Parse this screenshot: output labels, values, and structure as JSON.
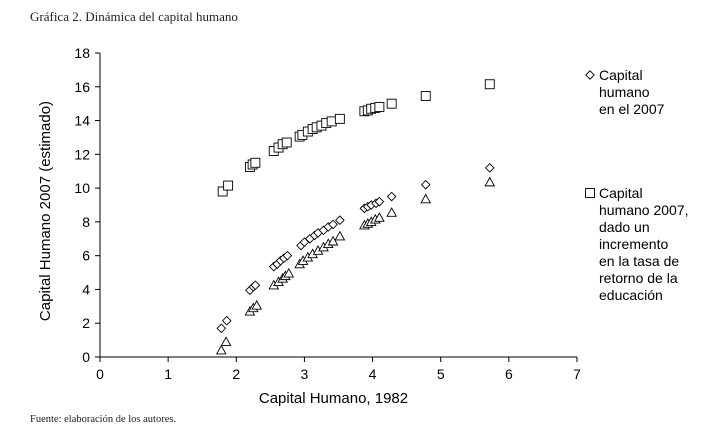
{
  "figure": {
    "title": "Gráfica 2. Dinámica del capital humano",
    "source": "Fuente: elaboración de los autores."
  },
  "chart_data": {
    "type": "scatter",
    "xlabel": "Capital Humano, 1982",
    "ylabel": "Capital Humano  2007  (estimado)",
    "xlim": [
      0,
      7
    ],
    "ylim": [
      0,
      18
    ],
    "xticks": [
      "0",
      "1",
      "2",
      "3",
      "4",
      "5",
      "6",
      "7"
    ],
    "yticks": [
      "0",
      "2",
      "4",
      "6",
      "8",
      "10",
      "12",
      "14",
      "16",
      "18"
    ],
    "grid": false,
    "legend_position": "right",
    "legend": [
      {
        "marker": "diamond",
        "lines": [
          "Capital",
          "humano",
          "en el 2007"
        ]
      },
      {
        "marker": "square",
        "lines": [
          "Capital",
          "humano 2007,",
          "dado un",
          "incremento",
          "en la tasa de",
          "retorno de la",
          "educación"
        ]
      }
    ],
    "series": [
      {
        "marker": "diamond",
        "points": [
          [
            1.78,
            1.7
          ],
          [
            1.86,
            2.15
          ],
          [
            2.2,
            3.95
          ],
          [
            2.25,
            4.15
          ],
          [
            2.28,
            4.25
          ],
          [
            2.55,
            5.35
          ],
          [
            2.6,
            5.5
          ],
          [
            2.65,
            5.7
          ],
          [
            2.7,
            5.85
          ],
          [
            2.75,
            6.0
          ],
          [
            2.95,
            6.6
          ],
          [
            3.0,
            6.8
          ],
          [
            3.08,
            7.0
          ],
          [
            3.15,
            7.2
          ],
          [
            3.2,
            7.35
          ],
          [
            3.28,
            7.5
          ],
          [
            3.35,
            7.7
          ],
          [
            3.42,
            7.85
          ],
          [
            3.52,
            8.1
          ],
          [
            3.88,
            8.8
          ],
          [
            3.93,
            8.9
          ],
          [
            3.98,
            9.0
          ],
          [
            4.05,
            9.1
          ],
          [
            4.1,
            9.2
          ],
          [
            4.28,
            9.5
          ],
          [
            4.78,
            10.2
          ],
          [
            5.72,
            11.2
          ]
        ]
      },
      {
        "marker": "square",
        "points": [
          [
            1.8,
            9.8
          ],
          [
            1.88,
            10.15
          ],
          [
            2.2,
            11.25
          ],
          [
            2.24,
            11.4
          ],
          [
            2.28,
            11.5
          ],
          [
            2.55,
            12.2
          ],
          [
            2.62,
            12.4
          ],
          [
            2.68,
            12.6
          ],
          [
            2.74,
            12.7
          ],
          [
            2.93,
            13.05
          ],
          [
            2.97,
            13.15
          ],
          [
            3.05,
            13.35
          ],
          [
            3.12,
            13.5
          ],
          [
            3.18,
            13.6
          ],
          [
            3.25,
            13.7
          ],
          [
            3.32,
            13.85
          ],
          [
            3.4,
            13.95
          ],
          [
            3.52,
            14.1
          ],
          [
            3.88,
            14.55
          ],
          [
            3.93,
            14.6
          ],
          [
            3.98,
            14.7
          ],
          [
            4.04,
            14.75
          ],
          [
            4.1,
            14.8
          ],
          [
            4.28,
            15.0
          ],
          [
            4.78,
            15.45
          ],
          [
            5.72,
            16.15
          ]
        ]
      },
      {
        "marker": "triangle",
        "points": [
          [
            1.78,
            0.4
          ],
          [
            1.85,
            0.9
          ],
          [
            2.2,
            2.7
          ],
          [
            2.25,
            2.9
          ],
          [
            2.3,
            3.05
          ],
          [
            2.55,
            4.25
          ],
          [
            2.62,
            4.45
          ],
          [
            2.68,
            4.65
          ],
          [
            2.72,
            4.8
          ],
          [
            2.77,
            4.95
          ],
          [
            2.93,
            5.5
          ],
          [
            2.98,
            5.7
          ],
          [
            3.05,
            5.9
          ],
          [
            3.12,
            6.1
          ],
          [
            3.2,
            6.3
          ],
          [
            3.28,
            6.5
          ],
          [
            3.35,
            6.7
          ],
          [
            3.42,
            6.85
          ],
          [
            3.52,
            7.15
          ],
          [
            3.88,
            7.8
          ],
          [
            3.93,
            7.9
          ],
          [
            3.98,
            8.0
          ],
          [
            4.04,
            8.15
          ],
          [
            4.1,
            8.25
          ],
          [
            4.28,
            8.55
          ],
          [
            4.78,
            9.35
          ],
          [
            5.72,
            10.35
          ]
        ]
      }
    ]
  }
}
